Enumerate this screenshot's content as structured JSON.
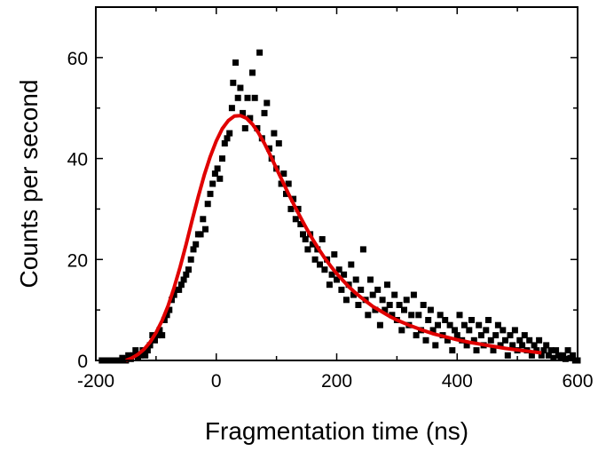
{
  "chart_data": {
    "type": "scatter",
    "title": "",
    "xlabel": "Fragmentation time (ns)",
    "ylabel": "Counts per second",
    "xlim": [
      -200,
      600
    ],
    "ylim": [
      0,
      70
    ],
    "xticks": [
      -200,
      0,
      200,
      400,
      600
    ],
    "yticks": [
      0,
      20,
      40,
      60
    ],
    "grid": false,
    "legend": "none",
    "colors": {
      "points": "#000000",
      "fit": "#e00000",
      "axes": "#000000"
    },
    "series": [
      {
        "type": "scatter",
        "marker": "square",
        "points": [
          [
            -190,
            0
          ],
          [
            -184,
            0
          ],
          [
            -180,
            0
          ],
          [
            -176,
            0
          ],
          [
            -170,
            0
          ],
          [
            -166,
            0
          ],
          [
            -160,
            0
          ],
          [
            -156,
            0.5
          ],
          [
            -150,
            0
          ],
          [
            -146,
            1
          ],
          [
            -142,
            0.3
          ],
          [
            -138,
            1
          ],
          [
            -134,
            2
          ],
          [
            -130,
            0.5
          ],
          [
            -126,
            1
          ],
          [
            -122,
            2
          ],
          [
            -118,
            1
          ],
          [
            -114,
            2
          ],
          [
            -110,
            3
          ],
          [
            -106,
            5
          ],
          [
            -102,
            4
          ],
          [
            -98,
            5
          ],
          [
            -94,
            6
          ],
          [
            -90,
            5
          ],
          [
            -86,
            8
          ],
          [
            -82,
            9
          ],
          [
            -78,
            10
          ],
          [
            -74,
            12
          ],
          [
            -70,
            13
          ],
          [
            -66,
            14
          ],
          [
            -62,
            14
          ],
          [
            -58,
            15
          ],
          [
            -54,
            16
          ],
          [
            -50,
            17
          ],
          [
            -46,
            18
          ],
          [
            -42,
            20
          ],
          [
            -38,
            22
          ],
          [
            -34,
            23
          ],
          [
            -30,
            25
          ],
          [
            -26,
            25
          ],
          [
            -22,
            28
          ],
          [
            -18,
            26
          ],
          [
            -14,
            31
          ],
          [
            -10,
            33
          ],
          [
            -6,
            35
          ],
          [
            -2,
            37
          ],
          [
            2,
            38
          ],
          [
            6,
            36
          ],
          [
            10,
            40
          ],
          [
            14,
            43
          ],
          [
            18,
            44
          ],
          [
            22,
            45
          ],
          [
            26,
            50
          ],
          [
            28,
            55
          ],
          [
            32,
            59
          ],
          [
            36,
            52
          ],
          [
            40,
            54
          ],
          [
            44,
            49
          ],
          [
            48,
            46
          ],
          [
            52,
            52
          ],
          [
            56,
            48
          ],
          [
            60,
            57
          ],
          [
            64,
            52
          ],
          [
            68,
            46
          ],
          [
            72,
            61
          ],
          [
            76,
            44
          ],
          [
            80,
            49
          ],
          [
            84,
            51
          ],
          [
            88,
            42
          ],
          [
            92,
            40
          ],
          [
            96,
            45
          ],
          [
            100,
            38
          ],
          [
            104,
            43
          ],
          [
            108,
            35
          ],
          [
            112,
            37
          ],
          [
            116,
            33
          ],
          [
            120,
            35
          ],
          [
            124,
            30
          ],
          [
            128,
            32
          ],
          [
            132,
            28
          ],
          [
            136,
            30
          ],
          [
            140,
            27
          ],
          [
            144,
            25
          ],
          [
            148,
            24
          ],
          [
            152,
            22
          ],
          [
            156,
            25
          ],
          [
            160,
            23
          ],
          [
            164,
            20
          ],
          [
            168,
            22
          ],
          [
            172,
            19
          ],
          [
            176,
            24
          ],
          [
            180,
            18
          ],
          [
            184,
            20
          ],
          [
            188,
            15
          ],
          [
            192,
            17
          ],
          [
            196,
            21
          ],
          [
            200,
            16
          ],
          [
            204,
            18
          ],
          [
            208,
            14
          ],
          [
            212,
            17
          ],
          [
            216,
            12
          ],
          [
            220,
            15
          ],
          [
            224,
            19
          ],
          [
            228,
            13
          ],
          [
            232,
            16
          ],
          [
            236,
            11
          ],
          [
            240,
            14
          ],
          [
            244,
            22
          ],
          [
            248,
            12
          ],
          [
            252,
            9
          ],
          [
            256,
            16
          ],
          [
            260,
            13
          ],
          [
            264,
            10
          ],
          [
            268,
            14
          ],
          [
            272,
            7
          ],
          [
            276,
            12
          ],
          [
            280,
            10
          ],
          [
            284,
            15
          ],
          [
            288,
            11
          ],
          [
            292,
            9
          ],
          [
            296,
            13
          ],
          [
            300,
            8
          ],
          [
            304,
            11
          ],
          [
            308,
            6
          ],
          [
            312,
            10
          ],
          [
            316,
            12
          ],
          [
            320,
            7
          ],
          [
            324,
            9
          ],
          [
            328,
            13
          ],
          [
            332,
            5
          ],
          [
            336,
            9
          ],
          [
            340,
            6
          ],
          [
            344,
            11
          ],
          [
            348,
            4
          ],
          [
            352,
            8
          ],
          [
            356,
            10
          ],
          [
            360,
            6
          ],
          [
            364,
            3
          ],
          [
            368,
            7
          ],
          [
            372,
            9
          ],
          [
            376,
            5
          ],
          [
            380,
            8
          ],
          [
            384,
            4
          ],
          [
            388,
            7
          ],
          [
            392,
            2
          ],
          [
            396,
            6
          ],
          [
            400,
            5
          ],
          [
            404,
            9
          ],
          [
            408,
            4
          ],
          [
            412,
            7
          ],
          [
            416,
            3
          ],
          [
            420,
            6
          ],
          [
            424,
            8
          ],
          [
            428,
            4
          ],
          [
            432,
            2
          ],
          [
            436,
            7
          ],
          [
            440,
            5
          ],
          [
            444,
            3
          ],
          [
            448,
            6
          ],
          [
            452,
            8
          ],
          [
            456,
            4
          ],
          [
            460,
            2
          ],
          [
            464,
            5
          ],
          [
            468,
            7
          ],
          [
            472,
            3
          ],
          [
            476,
            6
          ],
          [
            480,
            4
          ],
          [
            484,
            1
          ],
          [
            488,
            5
          ],
          [
            492,
            3
          ],
          [
            496,
            6
          ],
          [
            500,
            2
          ],
          [
            504,
            4
          ],
          [
            508,
            3
          ],
          [
            512,
            5
          ],
          [
            516,
            2
          ],
          [
            520,
            4
          ],
          [
            524,
            1
          ],
          [
            528,
            3
          ],
          [
            532,
            2
          ],
          [
            536,
            4
          ],
          [
            540,
            1
          ],
          [
            544,
            2
          ],
          [
            548,
            3
          ],
          [
            552,
            1
          ],
          [
            556,
            2
          ],
          [
            560,
            0.5
          ],
          [
            564,
            2
          ],
          [
            568,
            1
          ],
          [
            572,
            0.5
          ],
          [
            576,
            1
          ],
          [
            580,
            0.3
          ],
          [
            584,
            2
          ],
          [
            588,
            0.5
          ],
          [
            592,
            1
          ],
          [
            596,
            0
          ],
          [
            600,
            0
          ]
        ]
      },
      {
        "type": "line",
        "points": [
          [
            -150,
            0
          ],
          [
            -140,
            0.5
          ],
          [
            -130,
            1.2
          ],
          [
            -120,
            2.2
          ],
          [
            -110,
            3.6
          ],
          [
            -100,
            5.5
          ],
          [
            -90,
            7.9
          ],
          [
            -80,
            10.8
          ],
          [
            -70,
            14.4
          ],
          [
            -60,
            18.5
          ],
          [
            -50,
            23.0
          ],
          [
            -40,
            27.8
          ],
          [
            -30,
            32.4
          ],
          [
            -20,
            36.7
          ],
          [
            -10,
            40.4
          ],
          [
            0,
            43.5
          ],
          [
            10,
            45.9
          ],
          [
            20,
            47.5
          ],
          [
            30,
            48.4
          ],
          [
            40,
            48.5
          ],
          [
            50,
            48.0
          ],
          [
            60,
            46.8
          ],
          [
            70,
            45.1
          ],
          [
            80,
            43.0
          ],
          [
            90,
            40.6
          ],
          [
            100,
            38.0
          ],
          [
            110,
            35.5
          ],
          [
            120,
            33.0
          ],
          [
            130,
            30.6
          ],
          [
            140,
            28.3
          ],
          [
            150,
            26.1
          ],
          [
            160,
            24.0
          ],
          [
            170,
            22.1
          ],
          [
            180,
            20.3
          ],
          [
            190,
            18.7
          ],
          [
            200,
            17.2
          ],
          [
            210,
            15.9
          ],
          [
            220,
            14.6
          ],
          [
            230,
            13.5
          ],
          [
            240,
            12.5
          ],
          [
            250,
            11.6
          ],
          [
            260,
            10.7
          ],
          [
            270,
            10.0
          ],
          [
            280,
            9.3
          ],
          [
            290,
            8.6
          ],
          [
            300,
            8.0
          ],
          [
            320,
            7.0
          ],
          [
            340,
            6.1
          ],
          [
            360,
            5.3
          ],
          [
            380,
            4.7
          ],
          [
            400,
            4.1
          ],
          [
            420,
            3.6
          ],
          [
            440,
            3.2
          ],
          [
            460,
            2.8
          ],
          [
            480,
            2.4
          ],
          [
            500,
            2.1
          ],
          [
            520,
            1.8
          ],
          [
            540,
            1.5
          ]
        ]
      }
    ]
  }
}
